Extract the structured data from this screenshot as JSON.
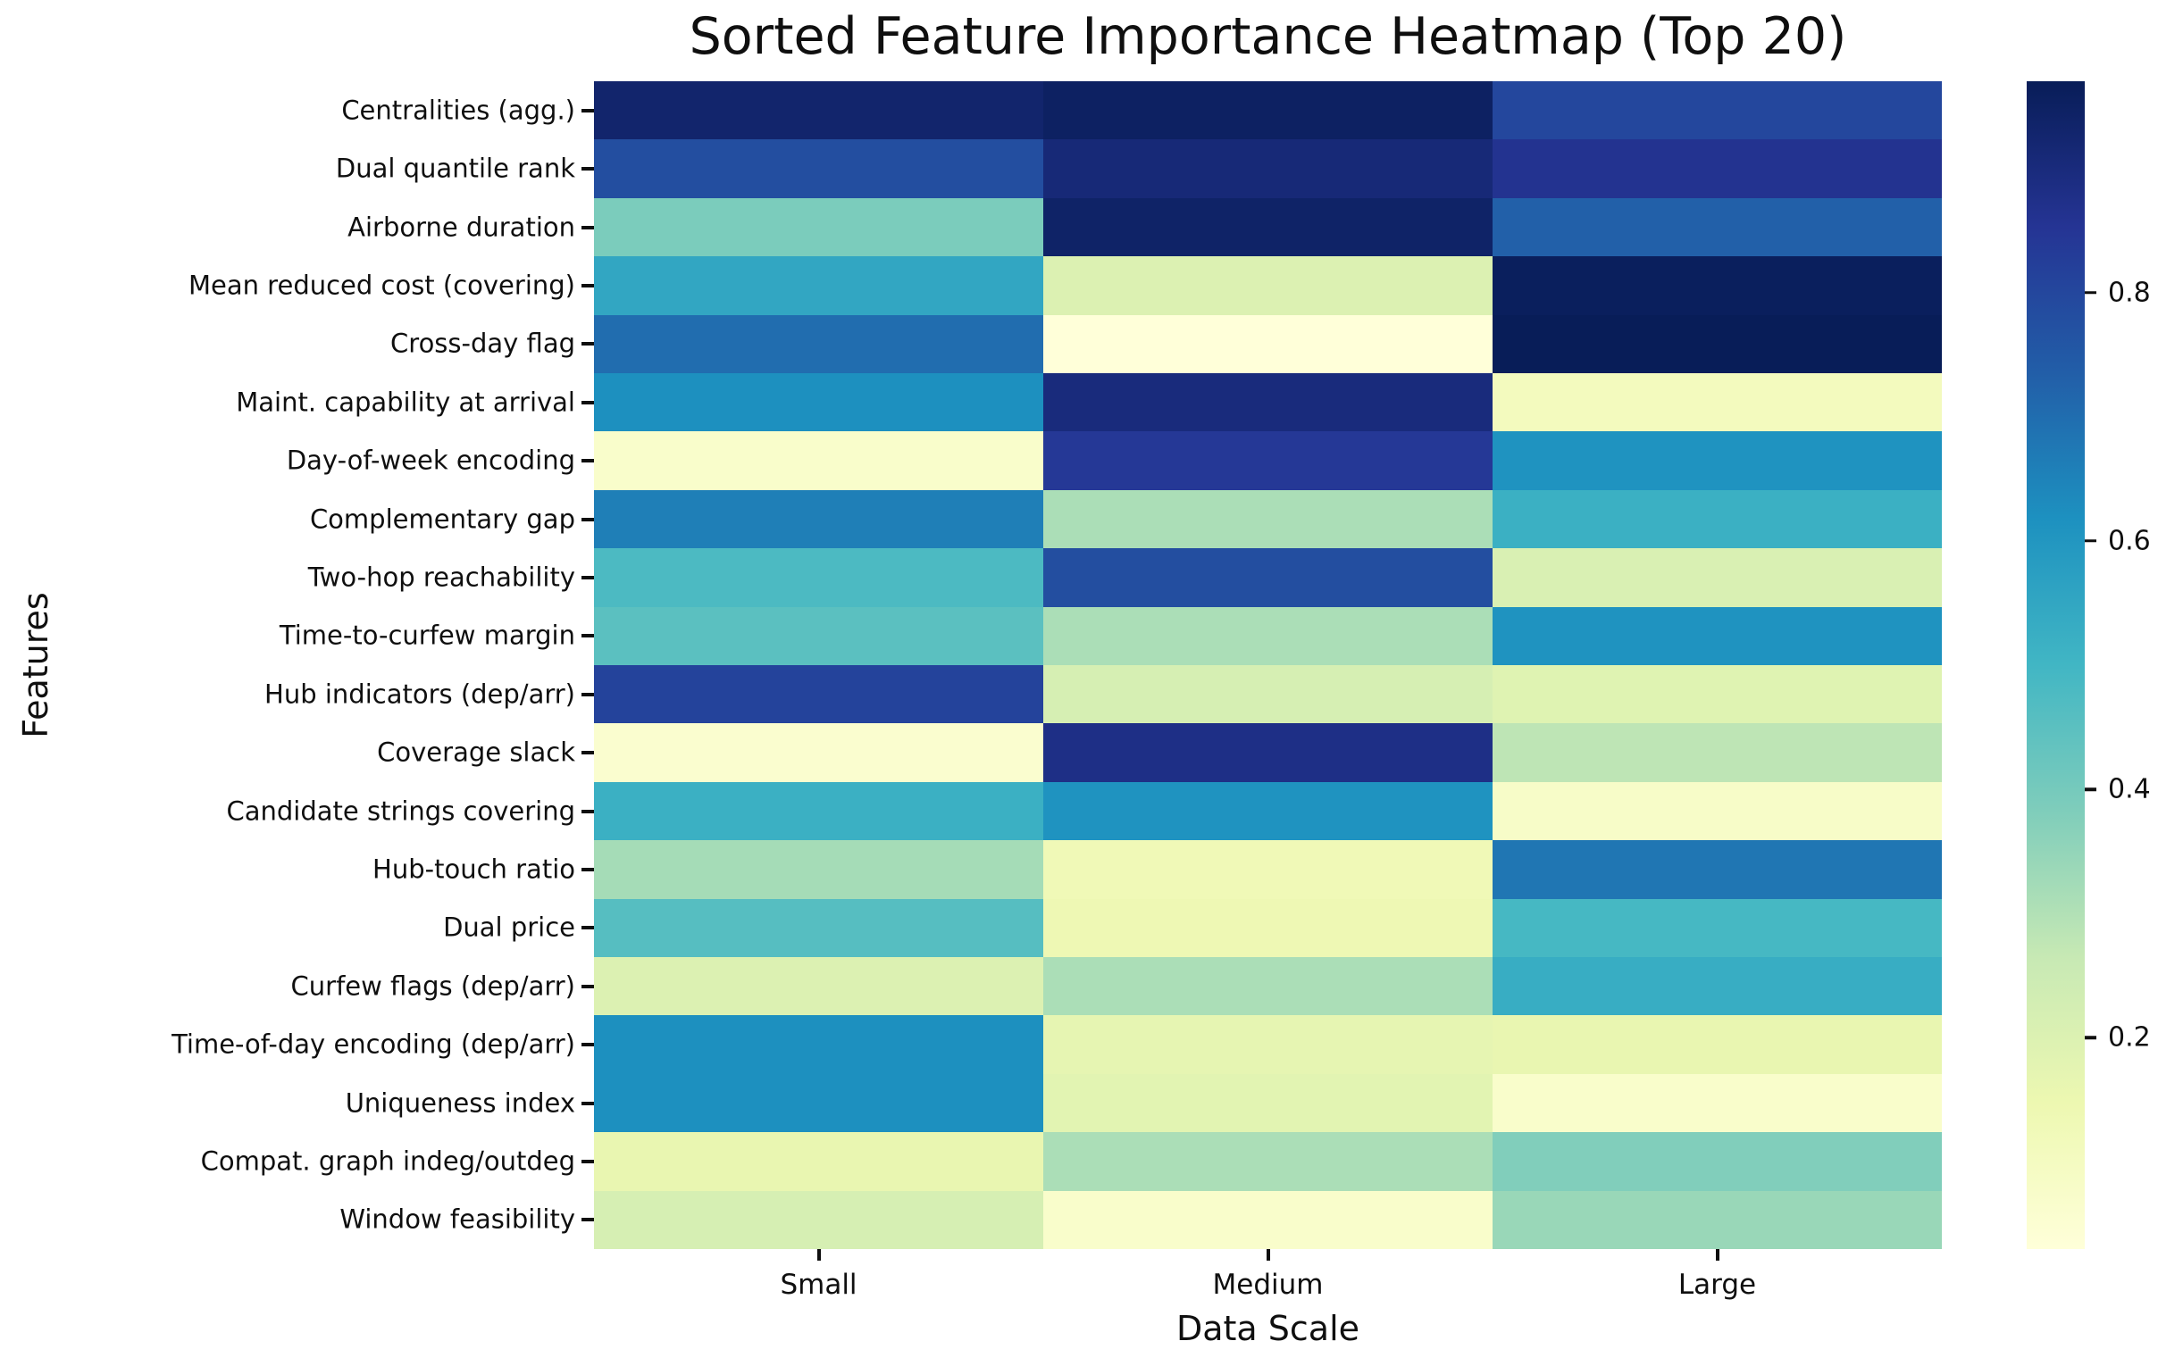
{
  "title": "Sorted Feature Importance Heatmap (Top 20)",
  "xlabel": "Data Scale",
  "ylabel": "Features",
  "chart_data": {
    "type": "heatmap",
    "title": "Sorted Feature Importance Heatmap (Top 20)",
    "xlabel": "Data Scale",
    "ylabel": "Features",
    "x_categories": [
      "Small",
      "Medium",
      "Large"
    ],
    "y_categories": [
      "Centralities (agg.)",
      "Dual quantile rank",
      "Airborne duration",
      "Mean reduced cost (covering)",
      "Cross-day flag",
      "Maint. capability at arrival",
      "Day-of-week encoding",
      "Complementary gap",
      "Two-hop reachability",
      "Time-to-curfew margin",
      "Hub indicators (dep/arr)",
      "Coverage slack",
      "Candidate strings covering",
      "Hub-touch ratio",
      "Dual price",
      "Curfew flags (dep/arr)",
      "Time-of-day encoding (dep/arr)",
      "Uniqueness index",
      "Compat. graph indeg/outdeg",
      "Window feasibility"
    ],
    "values": [
      [
        0.93,
        0.95,
        0.8
      ],
      [
        0.78,
        0.91,
        0.86
      ],
      [
        0.39,
        0.94,
        0.73
      ],
      [
        0.55,
        0.2,
        0.96
      ],
      [
        0.7,
        0.03,
        0.97
      ],
      [
        0.62,
        0.9,
        0.11
      ],
      [
        0.07,
        0.84,
        0.61
      ],
      [
        0.66,
        0.31,
        0.52
      ],
      [
        0.48,
        0.78,
        0.21
      ],
      [
        0.45,
        0.31,
        0.61
      ],
      [
        0.81,
        0.22,
        0.19
      ],
      [
        0.06,
        0.88,
        0.28
      ],
      [
        0.52,
        0.61,
        0.08
      ],
      [
        0.32,
        0.13,
        0.68
      ],
      [
        0.46,
        0.14,
        0.49
      ],
      [
        0.2,
        0.31,
        0.53
      ],
      [
        0.62,
        0.17,
        0.16
      ],
      [
        0.62,
        0.18,
        0.07
      ],
      [
        0.16,
        0.31,
        0.38
      ],
      [
        0.22,
        0.07,
        0.34
      ]
    ],
    "vmin": 0.03,
    "vmax": 0.97,
    "colormap": "YlGnBu",
    "colormap_anchors": [
      "#ffffd9",
      "#edf8b1",
      "#c7e9b4",
      "#7fcdbb",
      "#41b6c4",
      "#1d91c0",
      "#225ea8",
      "#253494",
      "#081d58"
    ],
    "grid": false,
    "legend_position": "colorbar-right",
    "colorbar_ticks": [
      0.8,
      0.6,
      0.4,
      0.2
    ],
    "colorbar_tick_labels": [
      "0.8",
      "0.6",
      "0.4",
      "0.2"
    ]
  }
}
